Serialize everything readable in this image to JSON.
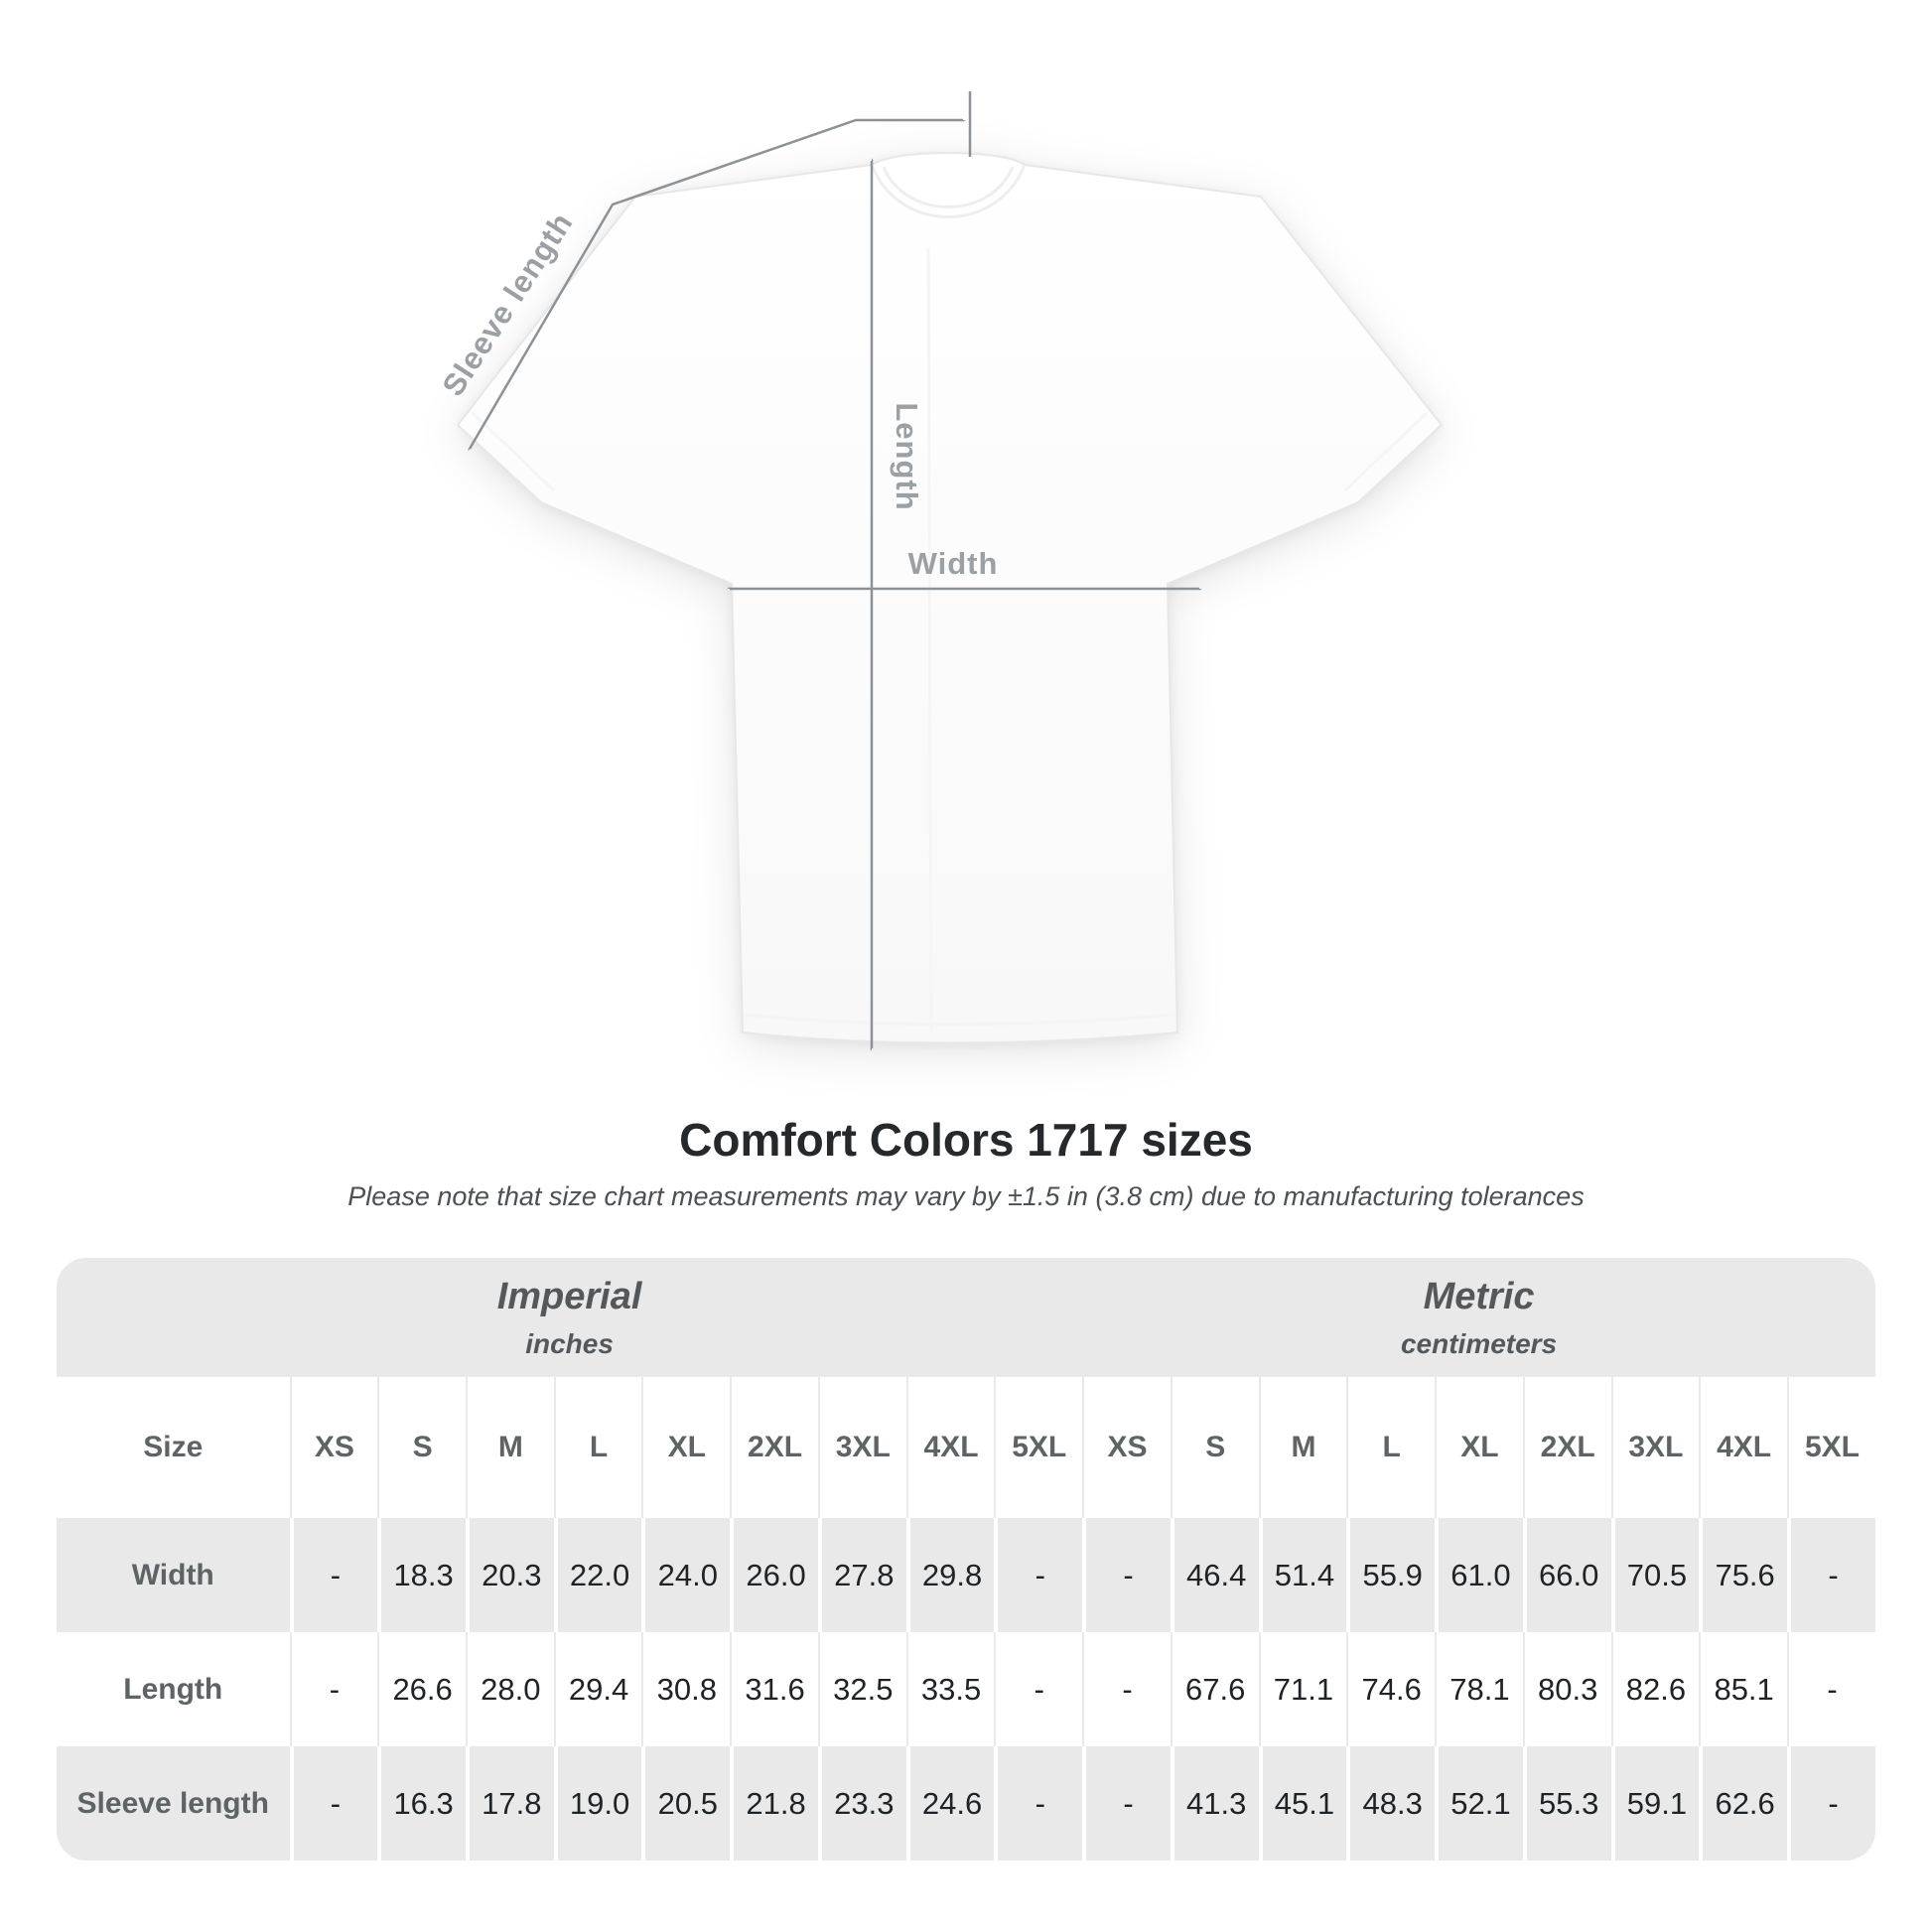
{
  "title": "Comfort Colors 1717 sizes",
  "subtitle": "Please note that size chart measurements may vary by ±1.5 in (3.8 cm) due to manufacturing tolerances",
  "diagram": {
    "labels": {
      "sleeve": "Sleeve length",
      "length": "Length",
      "width": "Width"
    }
  },
  "table": {
    "size_label": "Size",
    "unit_groups": [
      {
        "name": "Imperial",
        "unit": "inches"
      },
      {
        "name": "Metric",
        "unit": "centimeters"
      }
    ],
    "sizes": [
      "XS",
      "S",
      "M",
      "L",
      "XL",
      "2XL",
      "3XL",
      "4XL",
      "5XL"
    ],
    "rows": [
      {
        "label": "Width",
        "imperial": [
          "-",
          "18.3",
          "20.3",
          "22.0",
          "24.0",
          "26.0",
          "27.8",
          "29.8",
          "-"
        ],
        "metric": [
          "-",
          "46.4",
          "51.4",
          "55.9",
          "61.0",
          "66.0",
          "70.5",
          "75.6",
          "-"
        ]
      },
      {
        "label": "Length",
        "imperial": [
          "-",
          "26.6",
          "28.0",
          "29.4",
          "30.8",
          "31.6",
          "32.5",
          "33.5",
          "-"
        ],
        "metric": [
          "-",
          "67.6",
          "71.1",
          "74.6",
          "78.1",
          "80.3",
          "82.6",
          "85.1",
          "-"
        ]
      },
      {
        "label": "Sleeve length",
        "imperial": [
          "-",
          "16.3",
          "17.8",
          "19.0",
          "20.5",
          "21.8",
          "23.3",
          "24.6",
          "-"
        ],
        "metric": [
          "-",
          "41.3",
          "45.1",
          "48.3",
          "52.1",
          "55.3",
          "59.1",
          "62.6",
          "-"
        ]
      }
    ]
  },
  "colors": {
    "band_gray": "#e9e9e9",
    "text_gray": "#5e6366",
    "value_dark": "#1f2326",
    "diagram_line": "#8d9296",
    "diagram_label": "#9aa0a4"
  }
}
